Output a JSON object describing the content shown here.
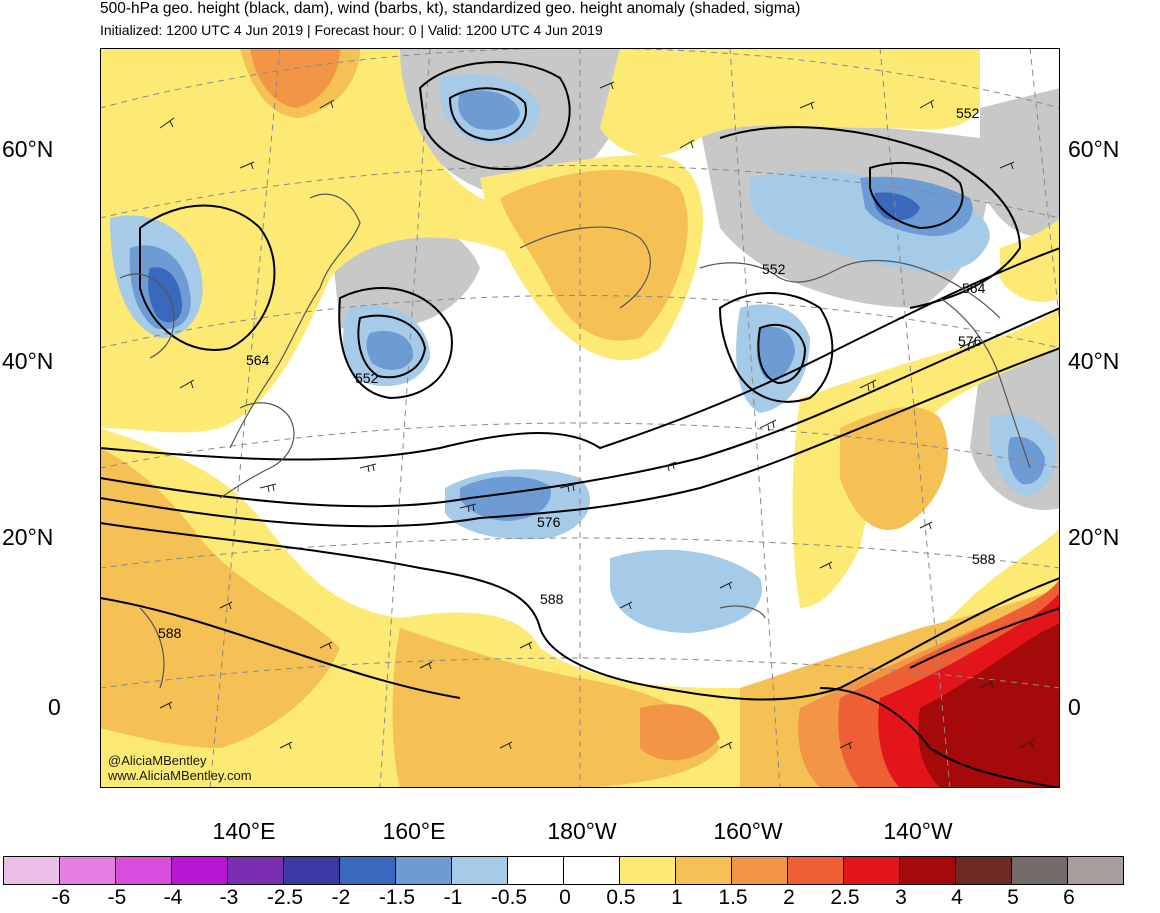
{
  "header": {
    "title": "500-hPa geo. height (black, dam), wind (barbs, kt), standardized geo. height anomaly (shaded, sigma)",
    "subtitle": "Initialized: 1200 UTC 4 Jun 2019 | Forecast hour: 0 | Valid: 1200 UTC 4 Jun 2019"
  },
  "map": {
    "lat_labels": [
      "60°N",
      "40°N",
      "20°N",
      "0"
    ],
    "lon_labels": [
      "140°E",
      "160°E",
      "180°W",
      "160°W",
      "140°W"
    ],
    "contour_labels": [
      "552",
      "552",
      "552",
      "564",
      "564",
      "576",
      "576",
      "588",
      "588",
      "588"
    ],
    "credits": [
      "@AliciaMBentley",
      "www.AliciaMBentley.com"
    ]
  },
  "colorbar": {
    "labels": [
      "-6",
      "-5",
      "-4",
      "-3",
      "-2.5",
      "-2",
      "-1.5",
      "-1",
      "-0.5",
      "0",
      "0.5",
      "1",
      "1.5",
      "2",
      "2.5",
      "3",
      "4",
      "5",
      "6"
    ],
    "colors": [
      "#ecbfe7",
      "#e57fe2",
      "#d84fdc",
      "#b816d3",
      "#7a2eb1",
      "#3b3aa3",
      "#3a68bd",
      "#6d9bd4",
      "#a6cbe8",
      "#ffffff",
      "#ffffff",
      "#fcea74",
      "#f5c054",
      "#f29546",
      "#ee5f35",
      "#e2151a",
      "#a50a0a",
      "#6e2b26",
      "#746b6b",
      "#a89e9e"
    ]
  }
}
